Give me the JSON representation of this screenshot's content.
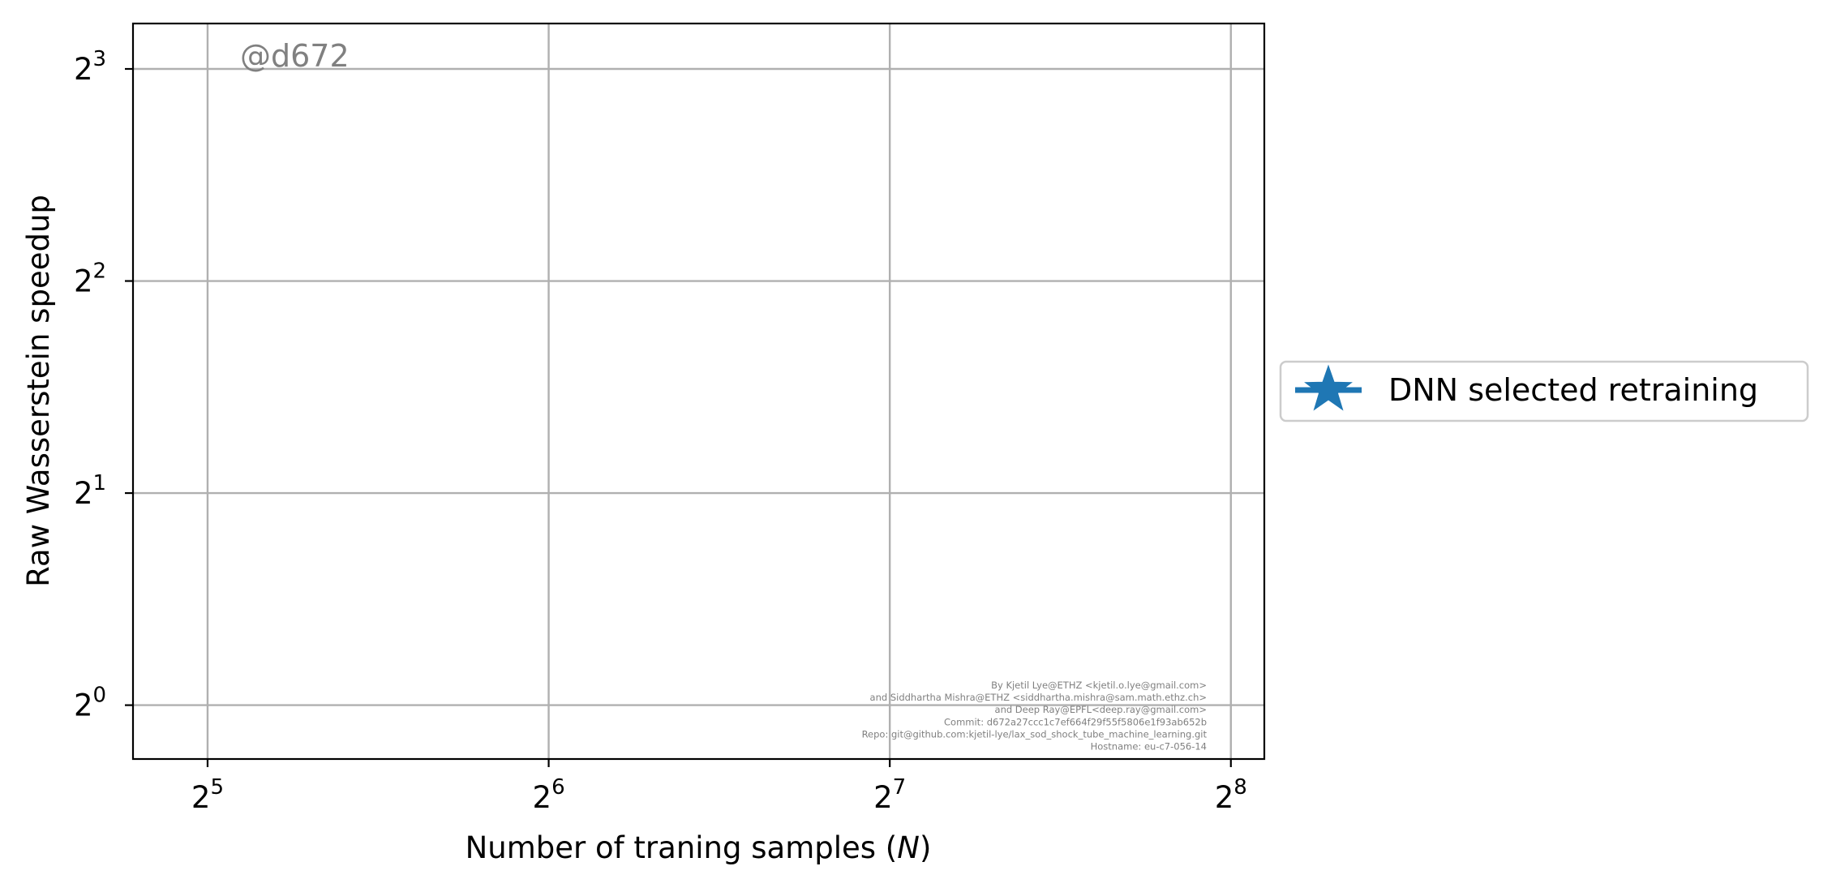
{
  "chart_data": {
    "type": "line",
    "title": "",
    "xlabel_text": "Number of traning samples (",
    "xlabel_symbol": "N",
    "xlabel_close": ")",
    "ylabel": "Raw Wasserstein speedup",
    "x_scale": "log2",
    "y_scale": "log2",
    "xlim": [
      27.5,
      274
    ],
    "ylim": [
      0.8386,
      9.28
    ],
    "x_ticks": [
      {
        "base": "2",
        "exp": "5"
      },
      {
        "base": "2",
        "exp": "6"
      },
      {
        "base": "2",
        "exp": "7"
      },
      {
        "base": "2",
        "exp": "8"
      }
    ],
    "y_ticks": [
      {
        "base": "2",
        "exp": "0"
      },
      {
        "base": "2",
        "exp": "1"
      },
      {
        "base": "2",
        "exp": "2"
      },
      {
        "base": "2",
        "exp": "3"
      }
    ],
    "x_tick_values": [
      32,
      64,
      128,
      256
    ],
    "y_tick_values": [
      1,
      2,
      4,
      8
    ],
    "grid": true,
    "series": [
      {
        "name": "DNN selected retraining",
        "marker": "star",
        "color": "#1f77b4",
        "x": [],
        "y": []
      }
    ],
    "legend_position": "outside-right"
  },
  "annotations": {
    "commit_tag": "@d672",
    "credits": [
      "By Kjetil Lye@ETHZ <kjetil.o.lye@gmail.com>",
      "and Siddhartha Mishra@ETHZ <siddhartha.mishra@sam.math.ethz.ch>",
      "and Deep Ray@EPFL<deep.ray@gmail.com>",
      "Commit: d672a27ccc1c7ef664f29f55f5806e1f93ab652b",
      "Repo: git@github.com:kjetil-lye/lax_sod_shock_tube_machine_learning.git",
      "Hostname: eu-c7-056-14"
    ]
  },
  "colors": {
    "series": "#1f77b4",
    "grid": "#b0b0b0",
    "annotation": "#808080",
    "axes": "#000000"
  }
}
